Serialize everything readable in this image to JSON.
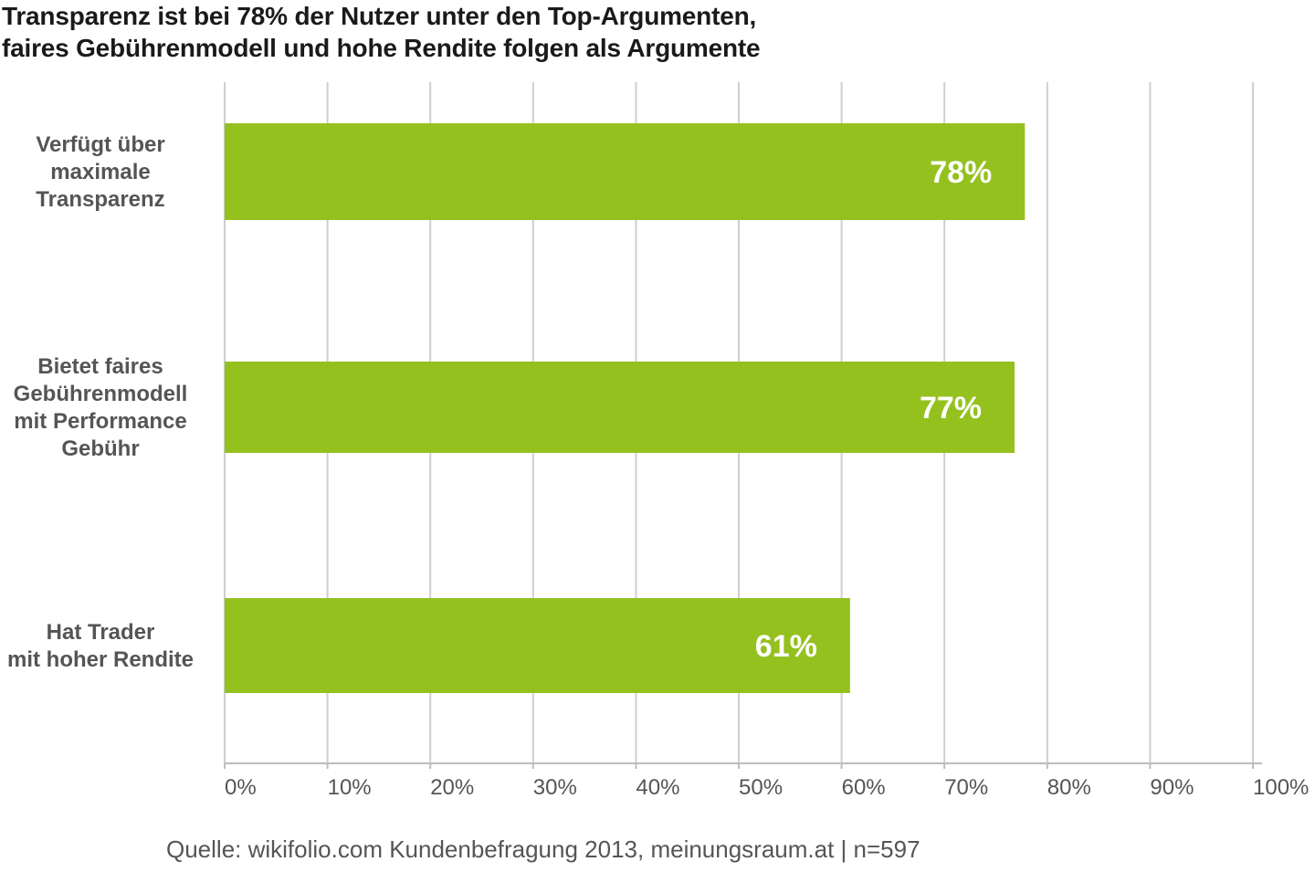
{
  "chart_data": {
    "type": "bar",
    "orientation": "horizontal",
    "title_lines": [
      "Transparenz ist bei 78% der Nutzer unter den Top-Argumenten,",
      "faires Gebührenmodell und hohe Rendite folgen als Argumente"
    ],
    "categories": [
      [
        "Verfügt über",
        "maximale",
        "Transparenz"
      ],
      [
        "Bietet faires",
        "Gebührenmodell",
        "mit Performance",
        "Gebühr"
      ],
      [
        "Hat Trader",
        "mit hoher Rendite"
      ]
    ],
    "values": [
      78,
      77,
      61
    ],
    "value_labels": [
      "78%",
      "77%",
      "61%"
    ],
    "xlim": [
      0,
      100
    ],
    "xticks": [
      0,
      10,
      20,
      30,
      40,
      50,
      60,
      70,
      80,
      90,
      100
    ],
    "xtick_labels": [
      "0%",
      "10%",
      "20%",
      "30%",
      "40%",
      "50%",
      "60%",
      "70%",
      "80%",
      "90%",
      "100%"
    ],
    "xlabel": "",
    "ylabel": "",
    "grid": true,
    "bar_color": "#95c11f",
    "source": "Quelle: wikifolio.com Kundenbefragung 2013, meinungsraum.at | n=597"
  }
}
